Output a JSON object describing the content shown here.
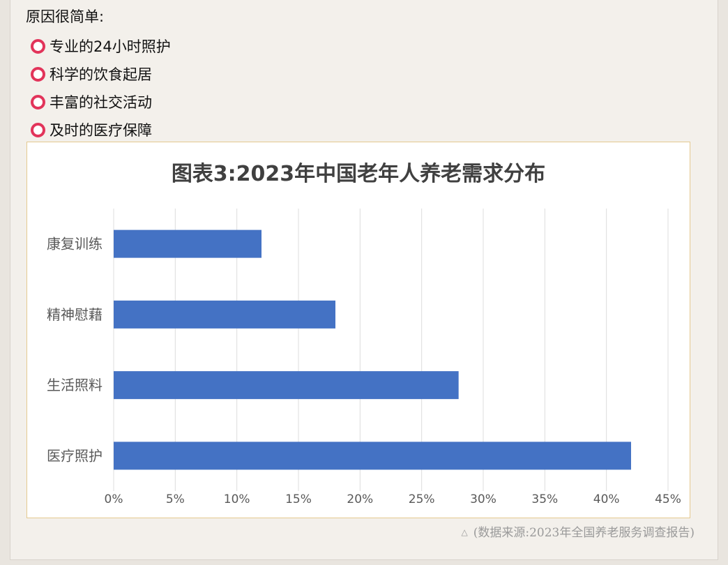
{
  "intro": "原因很简单:",
  "reasons": [
    "专业的24小时照护",
    "科学的饮食起居",
    "丰富的社交活动",
    "及时的医疗保障"
  ],
  "source_note": "(数据来源:2023年全国养老服务调查报告)",
  "source_icon": "triangle-icon",
  "chart_data": {
    "type": "bar",
    "orientation": "horizontal",
    "title": "图表3:2023年中国老年人养老需求分布",
    "categories": [
      "康复训练",
      "精神慰藉",
      "生活照料",
      "医疗照护"
    ],
    "values": [
      12,
      18,
      28,
      42
    ],
    "unit": "%",
    "xlim": [
      0,
      45
    ],
    "x_ticks": [
      "0%",
      "5%",
      "10%",
      "15%",
      "20%",
      "25%",
      "30%",
      "35%",
      "40%",
      "45%"
    ],
    "grid": "vertical",
    "bar_color": "#4472c4",
    "legend": "none"
  }
}
